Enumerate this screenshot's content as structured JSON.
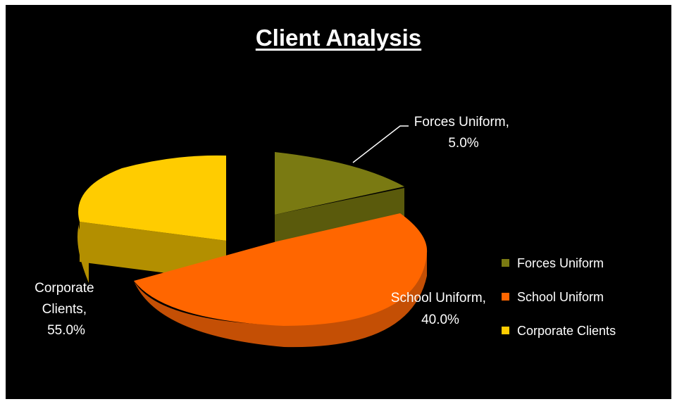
{
  "chart_data": {
    "type": "pie",
    "title": "Client Analysis",
    "categories": [
      "Forces Uniform",
      "School Uniform",
      "Corporate Clients"
    ],
    "values": [
      5.0,
      40.0,
      55.0
    ],
    "value_labels": [
      "5.0%",
      "40.0%",
      "55.0%"
    ],
    "colors": [
      "#7a7a12",
      "#ff6600",
      "#ffcc00"
    ],
    "legend_position": "right",
    "exploded": true,
    "style": "3d"
  }
}
